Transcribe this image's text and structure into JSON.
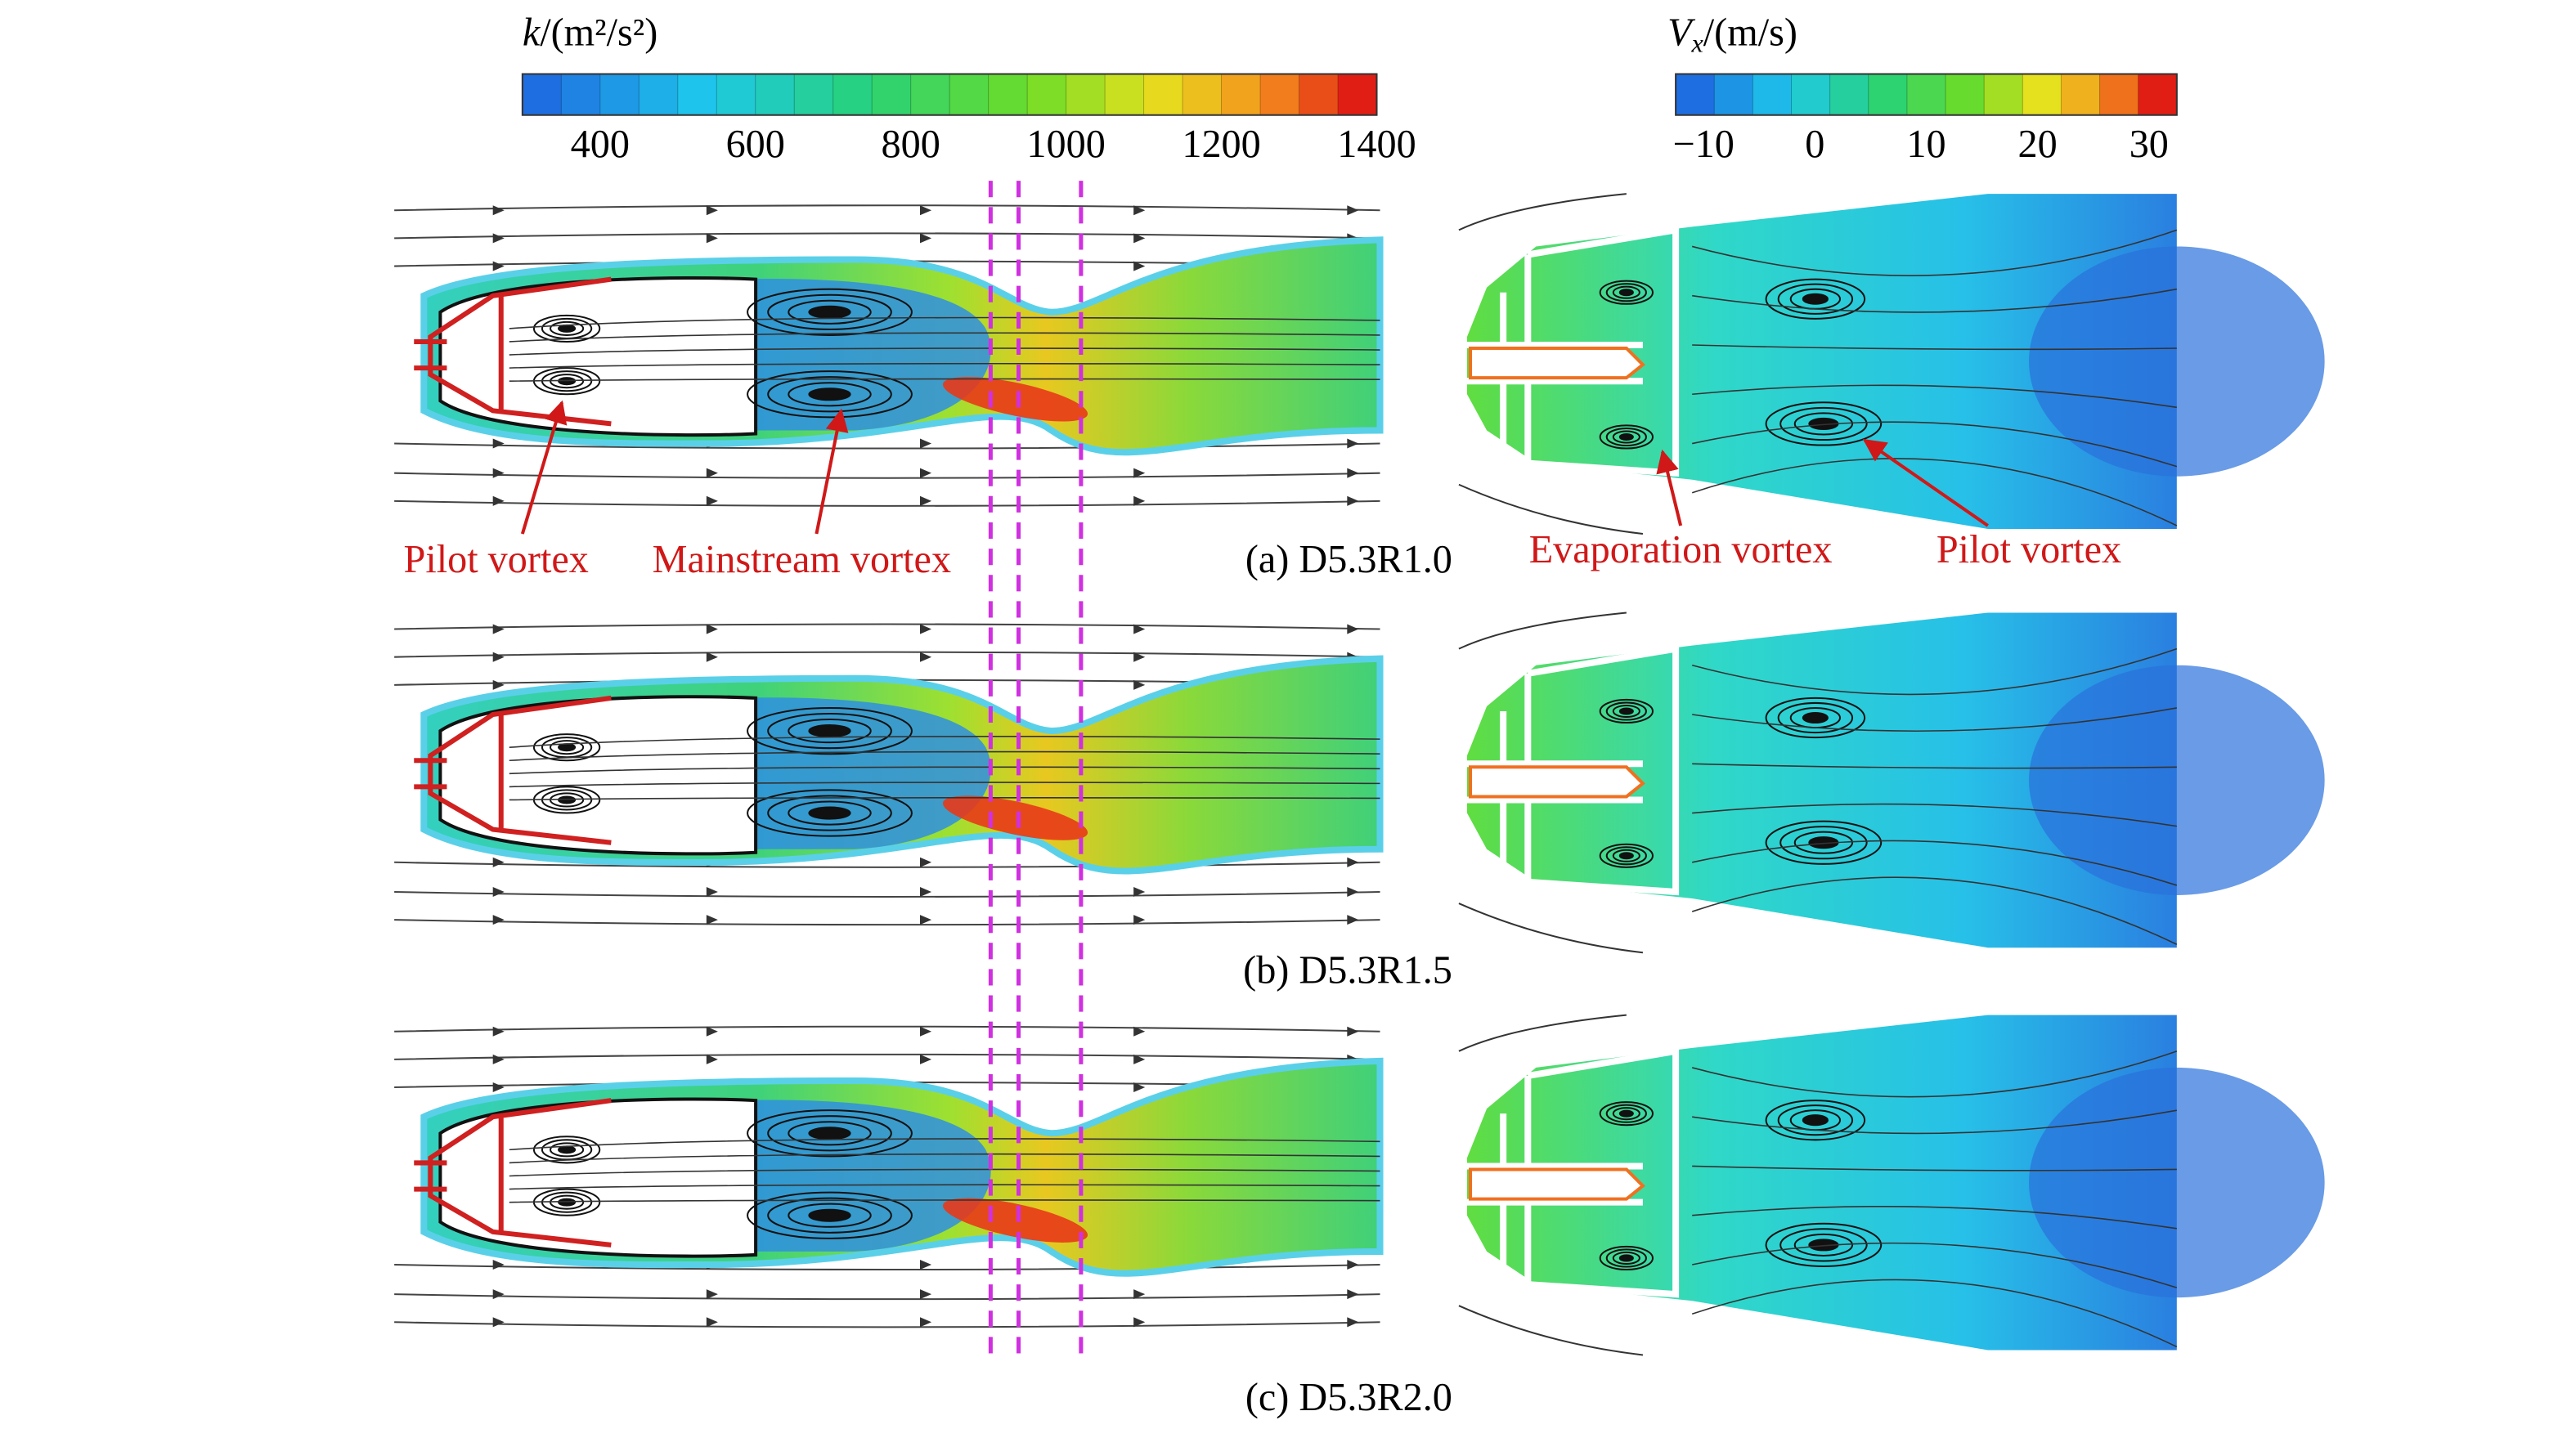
{
  "colorbars": [
    {
      "title": {
        "symbol": "k",
        "unit": "/(m²/s²)"
      },
      "range": [
        300,
        1400
      ],
      "ticks": [
        400,
        600,
        800,
        1000,
        1200,
        1400
      ]
    },
    {
      "title": {
        "symbol": "V",
        "subscript": "x",
        "unit": "/(m/s)"
      },
      "range": [
        -12.5,
        32.5
      ],
      "ticks": [
        {
          "value": -10,
          "label": "−10"
        },
        0,
        10,
        20,
        30
      ]
    }
  ],
  "panels": [
    {
      "caption": "(a) D5.3R1.0"
    },
    {
      "caption": "(b) D5.3R1.5"
    },
    {
      "caption": "(c) D5.3R2.0"
    }
  ],
  "annotations": [
    "Pilot vortex",
    "Mainstream vortex",
    "Evaporation vortex",
    "Pilot vortex"
  ]
}
